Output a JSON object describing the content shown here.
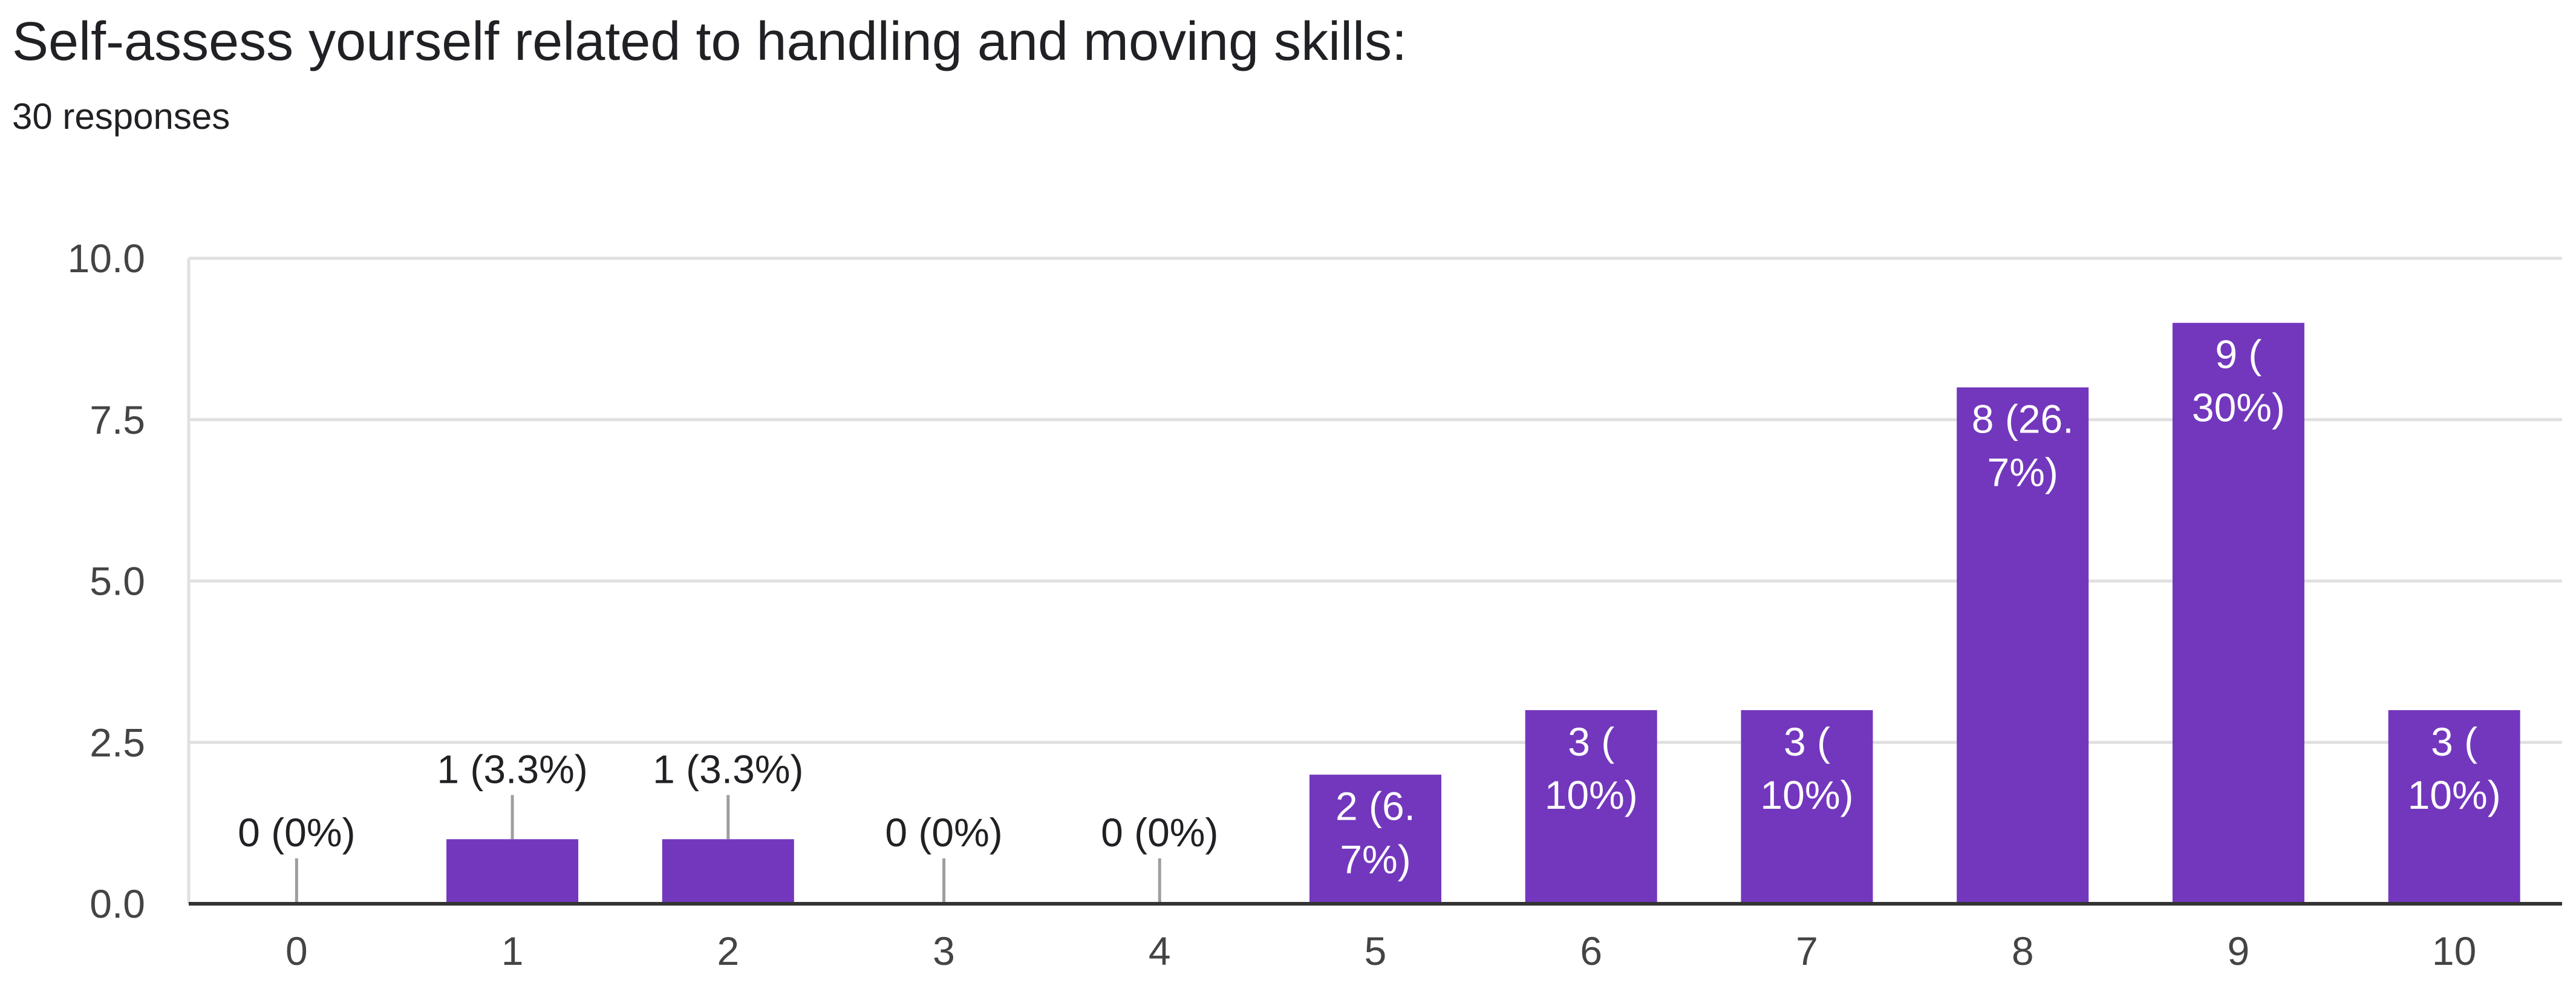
{
  "header": {
    "title": "Self-assess yourself related to  handling and moving skills:",
    "subtitle": "30 responses"
  },
  "chart_data": {
    "type": "bar",
    "categories": [
      "0",
      "1",
      "2",
      "3",
      "4",
      "5",
      "6",
      "7",
      "8",
      "9",
      "10"
    ],
    "values": [
      0,
      1,
      1,
      0,
      0,
      2,
      3,
      3,
      8,
      9,
      3
    ],
    "data_labels": [
      [
        "0 (0%)"
      ],
      [
        "1 (3.3%)"
      ],
      [
        "1 (3.3%)"
      ],
      [
        "0 (0%)"
      ],
      [
        "0 (0%)"
      ],
      [
        "2 (6.",
        "7%)"
      ],
      [
        "3 (",
        "10%)"
      ],
      [
        "3 (",
        "10%)"
      ],
      [
        "8 (26.",
        "7%)"
      ],
      [
        "9 (",
        "30%)"
      ],
      [
        "3 (",
        "10%)"
      ]
    ],
    "ylim": [
      0,
      10
    ],
    "yticks": [
      "0.0",
      "2.5",
      "5.0",
      "7.5",
      "10.0"
    ],
    "grid": true,
    "colors": {
      "bar": "#7337bd",
      "grid": "#e0e0e0",
      "axis": "#333333",
      "tick_text": "#444444",
      "leader": "#9e9e9e",
      "label_inside": "#ffffff",
      "label_outside": "#202124"
    }
  }
}
